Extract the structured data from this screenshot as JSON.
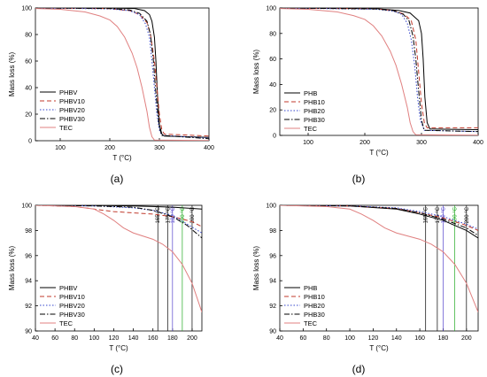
{
  "figure": {
    "panel_labels": [
      "(a)",
      "(b)",
      "(c)",
      "(d)"
    ]
  },
  "chart_data": [
    {
      "type": "line",
      "panel": "(a)",
      "xlabel": "T (°C)",
      "ylabel": "Mass loss (%)",
      "xlim": [
        50,
        400
      ],
      "ylim": [
        0,
        100
      ],
      "xticks": [
        100,
        200,
        300,
        400
      ],
      "yticks": [
        0,
        20,
        40,
        60,
        80,
        100
      ],
      "legend_position": "top-left",
      "series": [
        {
          "name": "PHBV",
          "color": "#000000",
          "dash": "solid",
          "points": [
            [
              50,
              100
            ],
            [
              200,
              100
            ],
            [
              250,
              99.6
            ],
            [
              270,
              98
            ],
            [
              280,
              95
            ],
            [
              285,
              90
            ],
            [
              290,
              78
            ],
            [
              293,
              60
            ],
            [
              296,
              35
            ],
            [
              300,
              12
            ],
            [
              305,
              5
            ],
            [
              310,
              3.5
            ],
            [
              400,
              2.5
            ]
          ]
        },
        {
          "name": "PHBV10",
          "color": "#c0392b",
          "dash": "dashed",
          "points": [
            [
              50,
              100
            ],
            [
              200,
              99.5
            ],
            [
              240,
              98
            ],
            [
              260,
              95
            ],
            [
              275,
              89
            ],
            [
              282,
              80
            ],
            [
              290,
              60
            ],
            [
              295,
              40
            ],
            [
              300,
              20
            ],
            [
              305,
              8
            ],
            [
              310,
              5
            ],
            [
              400,
              3.5
            ]
          ]
        },
        {
          "name": "PHBV20",
          "color": "#3344cc",
          "dash": "dotted",
          "points": [
            [
              50,
              100
            ],
            [
              200,
              99.3
            ],
            [
              240,
              98
            ],
            [
              260,
              95
            ],
            [
              272,
              88
            ],
            [
              280,
              78
            ],
            [
              285,
              60
            ],
            [
              290,
              40
            ],
            [
              295,
              20
            ],
            [
              300,
              8
            ],
            [
              305,
              4
            ],
            [
              400,
              2
            ]
          ]
        },
        {
          "name": "PHBV30",
          "color": "#000000",
          "dash": "dashdot",
          "points": [
            [
              50,
              100
            ],
            [
              200,
              99.6
            ],
            [
              240,
              98.5
            ],
            [
              260,
              96
            ],
            [
              275,
              90
            ],
            [
              282,
              80
            ],
            [
              288,
              60
            ],
            [
              292,
              40
            ],
            [
              297,
              20
            ],
            [
              300,
              10
            ],
            [
              305,
              4
            ],
            [
              400,
              1.5
            ]
          ]
        },
        {
          "name": "TEC",
          "color": "#e08080",
          "dash": "solid",
          "points": [
            [
              50,
              99.6
            ],
            [
              100,
              99
            ],
            [
              150,
              97
            ],
            [
              180,
              94
            ],
            [
              200,
              91
            ],
            [
              215,
              86
            ],
            [
              230,
              78
            ],
            [
              245,
              66
            ],
            [
              255,
              55
            ],
            [
              265,
              40
            ],
            [
              275,
              22
            ],
            [
              280,
              10
            ],
            [
              285,
              3
            ],
            [
              290,
              0.5
            ],
            [
              400,
              0.2
            ]
          ]
        }
      ]
    },
    {
      "type": "line",
      "panel": "(b)",
      "xlabel": "T (°C)",
      "ylabel": "Mass loss (%)",
      "xlim": [
        50,
        400
      ],
      "ylim": [
        0,
        100
      ],
      "xticks": [
        100,
        200,
        300,
        400
      ],
      "yticks": [
        0,
        20,
        40,
        60,
        80,
        100
      ],
      "legend_position": "left",
      "series": [
        {
          "name": "PHB",
          "color": "#000000",
          "dash": "solid",
          "points": [
            [
              50,
              100
            ],
            [
              220,
              99.5
            ],
            [
              260,
              98
            ],
            [
              280,
              96
            ],
            [
              295,
              90
            ],
            [
              300,
              80
            ],
            [
              303,
              60
            ],
            [
              306,
              30
            ],
            [
              310,
              10
            ],
            [
              315,
              5
            ],
            [
              400,
              4.5
            ]
          ]
        },
        {
          "name": "PHB10",
          "color": "#c0392b",
          "dash": "dashed",
          "points": [
            [
              50,
              100
            ],
            [
              220,
              99.3
            ],
            [
              250,
              98
            ],
            [
              270,
              95
            ],
            [
              282,
              90
            ],
            [
              290,
              75
            ],
            [
              295,
              50
            ],
            [
              300,
              25
            ],
            [
              305,
              10
            ],
            [
              310,
              6
            ],
            [
              400,
              6
            ]
          ]
        },
        {
          "name": "PHB20",
          "color": "#3344cc",
          "dash": "dotted",
          "points": [
            [
              50,
              100
            ],
            [
              220,
              99
            ],
            [
              250,
              97.5
            ],
            [
              265,
              95
            ],
            [
              275,
              88
            ],
            [
              282,
              75
            ],
            [
              288,
              55
            ],
            [
              293,
              30
            ],
            [
              298,
              12
            ],
            [
              305,
              4
            ],
            [
              400,
              3
            ]
          ]
        },
        {
          "name": "PHB30",
          "color": "#000000",
          "dash": "dashdot",
          "points": [
            [
              50,
              100
            ],
            [
              220,
              99.2
            ],
            [
              250,
              98
            ],
            [
              268,
              95
            ],
            [
              278,
              90
            ],
            [
              285,
              78
            ],
            [
              290,
              60
            ],
            [
              295,
              35
            ],
            [
              300,
              12
            ],
            [
              305,
              4
            ],
            [
              400,
              3
            ]
          ]
        },
        {
          "name": "TEC",
          "color": "#e08080",
          "dash": "solid",
          "points": [
            [
              50,
              99.6
            ],
            [
              100,
              99
            ],
            [
              150,
              97
            ],
            [
              180,
              94
            ],
            [
              200,
              91
            ],
            [
              215,
              86
            ],
            [
              230,
              78
            ],
            [
              245,
              66
            ],
            [
              255,
              55
            ],
            [
              265,
              40
            ],
            [
              275,
              22
            ],
            [
              280,
              10
            ],
            [
              285,
              3
            ],
            [
              290,
              0.5
            ],
            [
              400,
              0.2
            ]
          ]
        }
      ]
    },
    {
      "type": "line",
      "panel": "(c)",
      "xlabel": "T (°C)",
      "ylabel": "Mass loss (%)",
      "xlim": [
        40,
        210
      ],
      "ylim": [
        90,
        100
      ],
      "xticks": [
        40,
        60,
        80,
        100,
        120,
        140,
        160,
        180,
        200
      ],
      "yticks": [
        90,
        92,
        94,
        96,
        98,
        100
      ],
      "legend_position": "bottom-left",
      "vlines": [
        {
          "x": 165,
          "label": "165 °C",
          "color": "#000000"
        },
        {
          "x": 175,
          "label": "175 °C",
          "color": "#000000"
        },
        {
          "x": 180,
          "label": "180 °C",
          "color": "#5544cc"
        },
        {
          "x": 190,
          "label": "190 °C",
          "color": "#22aa22"
        },
        {
          "x": 200,
          "label": "200 °C",
          "color": "#000000"
        }
      ],
      "series": [
        {
          "name": "PHBV",
          "color": "#000000",
          "dash": "solid",
          "points": [
            [
              40,
              100
            ],
            [
              100,
              99.99
            ],
            [
              140,
              99.95
            ],
            [
              160,
              99.9
            ],
            [
              180,
              99.85
            ],
            [
              200,
              99.75
            ],
            [
              210,
              99.7
            ]
          ]
        },
        {
          "name": "PHBV10",
          "color": "#c0392b",
          "dash": "dashed",
          "points": [
            [
              40,
              100
            ],
            [
              80,
              99.9
            ],
            [
              100,
              99.7
            ],
            [
              120,
              99.5
            ],
            [
              140,
              99.4
            ],
            [
              160,
              99.3
            ],
            [
              180,
              99.1
            ],
            [
              200,
              98.7
            ],
            [
              210,
              98.3
            ]
          ]
        },
        {
          "name": "PHBV20",
          "color": "#3344cc",
          "dash": "dotted",
          "points": [
            [
              40,
              100
            ],
            [
              100,
              99.95
            ],
            [
              140,
              99.8
            ],
            [
              160,
              99.6
            ],
            [
              180,
              99.2
            ],
            [
              195,
              98.5
            ],
            [
              210,
              97.8
            ]
          ]
        },
        {
          "name": "PHBV30",
          "color": "#000000",
          "dash": "dashdot",
          "points": [
            [
              40,
              100
            ],
            [
              100,
              99.95
            ],
            [
              140,
              99.85
            ],
            [
              160,
              99.6
            ],
            [
              180,
              99.1
            ],
            [
              195,
              98.4
            ],
            [
              210,
              97.4
            ]
          ]
        },
        {
          "name": "TEC",
          "color": "#e08080",
          "dash": "solid",
          "points": [
            [
              40,
              100
            ],
            [
              80,
              99.9
            ],
            [
              100,
              99.7
            ],
            [
              110,
              99.3
            ],
            [
              120,
              98.8
            ],
            [
              130,
              98.2
            ],
            [
              140,
              97.8
            ],
            [
              160,
              97.3
            ],
            [
              170,
              96.9
            ],
            [
              180,
              96.3
            ],
            [
              190,
              95.3
            ],
            [
              200,
              93.8
            ],
            [
              210,
              91.5
            ]
          ]
        }
      ]
    },
    {
      "type": "line",
      "panel": "(d)",
      "xlabel": "T (°C)",
      "ylabel": "Mass loss (%)",
      "xlim": [
        40,
        210
      ],
      "ylim": [
        90,
        100
      ],
      "xticks": [
        40,
        60,
        80,
        100,
        120,
        140,
        160,
        180,
        200
      ],
      "yticks": [
        90,
        92,
        94,
        96,
        98,
        100
      ],
      "legend_position": "bottom-left",
      "vlines": [
        {
          "x": 165,
          "label": "165 °C",
          "color": "#000000"
        },
        {
          "x": 175,
          "label": "175 °C",
          "color": "#000000"
        },
        {
          "x": 180,
          "label": "180 °C",
          "color": "#5544cc"
        },
        {
          "x": 190,
          "label": "190 °C",
          "color": "#22aa22"
        },
        {
          "x": 200,
          "label": "200 °C",
          "color": "#000000"
        }
      ],
      "series": [
        {
          "name": "PHB",
          "color": "#000000",
          "dash": "solid",
          "points": [
            [
              40,
              100
            ],
            [
              100,
              99.95
            ],
            [
              140,
              99.7
            ],
            [
              160,
              99.3
            ],
            [
              180,
              98.8
            ],
            [
              200,
              98
            ],
            [
              210,
              97.4
            ]
          ]
        },
        {
          "name": "PHB10",
          "color": "#c0392b",
          "dash": "dashed",
          "points": [
            [
              40,
              100
            ],
            [
              100,
              99.95
            ],
            [
              140,
              99.75
            ],
            [
              160,
              99.4
            ],
            [
              180,
              99
            ],
            [
              200,
              98.4
            ],
            [
              210,
              98
            ]
          ]
        },
        {
          "name": "PHB20",
          "color": "#3344cc",
          "dash": "dotted",
          "points": [
            [
              40,
              100
            ],
            [
              100,
              99.95
            ],
            [
              140,
              99.8
            ],
            [
              160,
              99.5
            ],
            [
              180,
              99.1
            ],
            [
              200,
              98.5
            ],
            [
              210,
              98.1
            ]
          ]
        },
        {
          "name": "PHB30",
          "color": "#000000",
          "dash": "dashdot",
          "points": [
            [
              40,
              100
            ],
            [
              100,
              99.95
            ],
            [
              140,
              99.75
            ],
            [
              160,
              99.4
            ],
            [
              180,
              98.9
            ],
            [
              200,
              98.2
            ],
            [
              210,
              97.6
            ]
          ]
        },
        {
          "name": "TEC",
          "color": "#e08080",
          "dash": "solid",
          "points": [
            [
              40,
              100
            ],
            [
              80,
              99.9
            ],
            [
              100,
              99.7
            ],
            [
              110,
              99.3
            ],
            [
              120,
              98.8
            ],
            [
              130,
              98.2
            ],
            [
              140,
              97.8
            ],
            [
              160,
              97.3
            ],
            [
              170,
              96.9
            ],
            [
              180,
              96.3
            ],
            [
              190,
              95.3
            ],
            [
              200,
              93.8
            ],
            [
              210,
              91.5
            ]
          ]
        }
      ]
    }
  ]
}
